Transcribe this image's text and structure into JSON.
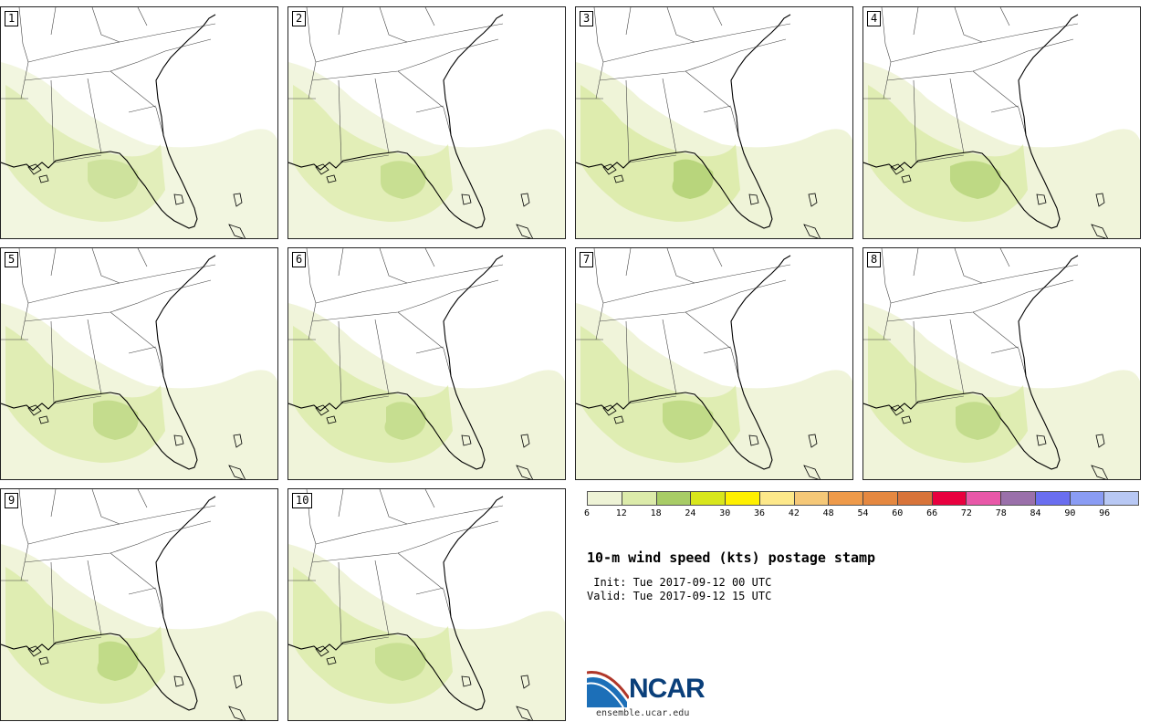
{
  "panels": [
    {
      "label": "1",
      "intensity": [
        0.35,
        0.15
      ]
    },
    {
      "label": "2",
      "intensity": [
        0.45,
        0.2
      ]
    },
    {
      "label": "3",
      "intensity": [
        0.7,
        0.35
      ]
    },
    {
      "label": "4",
      "intensity": [
        0.6,
        0.3
      ]
    },
    {
      "label": "5",
      "intensity": [
        0.5,
        0.25
      ]
    },
    {
      "label": "6",
      "intensity": [
        0.45,
        0.3
      ]
    },
    {
      "label": "7",
      "intensity": [
        0.55,
        0.3
      ]
    },
    {
      "label": "8",
      "intensity": [
        0.5,
        0.3
      ]
    },
    {
      "label": "9",
      "intensity": [
        0.55,
        0.3
      ]
    },
    {
      "label": "10",
      "intensity": [
        0.4,
        0.3
      ]
    }
  ],
  "colorbar": {
    "colors": [
      "#eef3d6",
      "#dcebaa",
      "#a8cc66",
      "#d8e61c",
      "#fff000",
      "#fde88a",
      "#f5c878",
      "#ee9a4a",
      "#e58840",
      "#d8743a",
      "#e8003e",
      "#e858a8",
      "#9a70aa",
      "#6a6ef0",
      "#8a9cf4",
      "#b8c8f4"
    ],
    "ticks": [
      "6",
      "12",
      "18",
      "24",
      "30",
      "36",
      "42",
      "48",
      "54",
      "60",
      "66",
      "72",
      "78",
      "84",
      "90",
      "96"
    ]
  },
  "title": "10-m wind speed (kts) postage stamp",
  "init": " Init: Tue 2017-09-12 00 UTC",
  "valid": "Valid: Tue 2017-09-12 15 UTC",
  "logo": {
    "name": "NCAR",
    "url": "ensemble.ucar.edu"
  }
}
